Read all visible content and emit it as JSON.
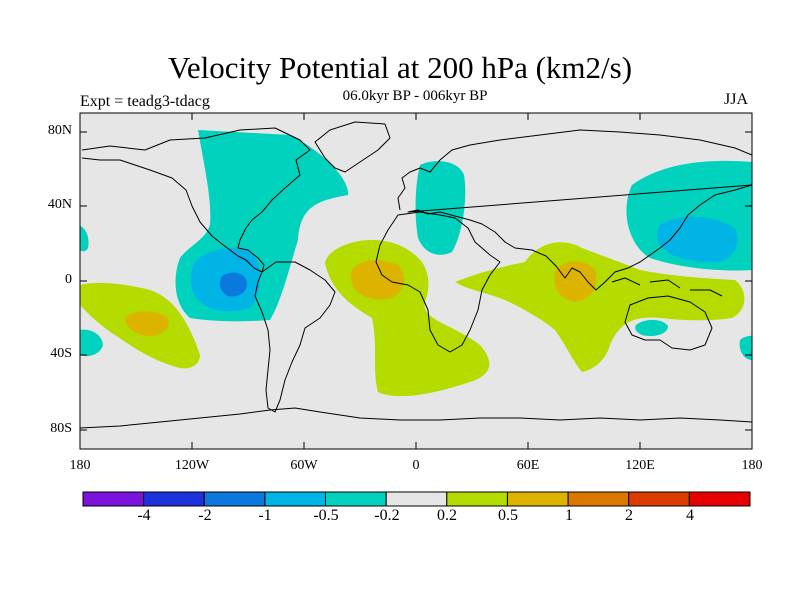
{
  "title": "Velocity Potential at 200 hPa (km2/s)",
  "subtitle": "06.0kyr BP - 006kyr BP",
  "experiment": "Expt = teadg3-tdacg",
  "season": "JJA",
  "lat_labels": [
    "80N",
    "40N",
    "0",
    "40S",
    "80S"
  ],
  "lon_labels": [
    "180",
    "120W",
    "60W",
    "0",
    "60E",
    "120E",
    "180"
  ],
  "colorbar": {
    "labels": [
      "-4",
      "-2",
      "-1",
      "-0.5",
      "-0.2",
      "0.2",
      "0.5",
      "1",
      "2",
      "4"
    ],
    "colors": [
      "#7a14dc",
      "#1e32dc",
      "#0a78dc",
      "#00b4e6",
      "#00d2be",
      "#e6e6e6",
      "#b4dc00",
      "#dcb400",
      "#dc7800",
      "#dc3c00",
      "#e60000"
    ]
  },
  "map_colors": {
    "background": "#e6e6e6",
    "neg_weak": "#00d2be",
    "neg_mid": "#00b4e6",
    "neg_strong": "#0a78dc",
    "pos_weak": "#b4dc00",
    "pos_mid": "#dcb400"
  }
}
